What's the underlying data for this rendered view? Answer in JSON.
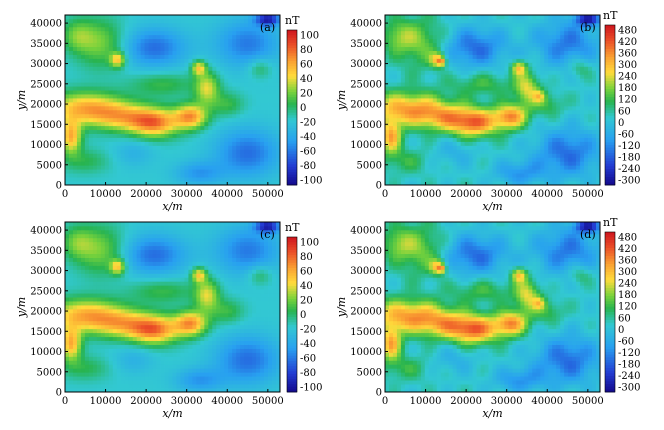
{
  "figure": {
    "panels": [
      {
        "label": "(a)",
        "unit": "nT",
        "colorbar_ticks": [
          "100",
          "80",
          "60",
          "40",
          "20",
          "0",
          "-20",
          "-40",
          "-60",
          "-80",
          "-100"
        ],
        "xlabel": "x/m",
        "ylabel": "y/m"
      },
      {
        "label": "(b)",
        "unit": "nT",
        "colorbar_ticks": [
          "480",
          "420",
          "360",
          "300",
          "240",
          "180",
          "120",
          "60",
          "0",
          "-60",
          "-120",
          "-180",
          "-240",
          "-300"
        ],
        "xlabel": "x/m",
        "ylabel": "y/m"
      },
      {
        "label": "(c)",
        "unit": "nT",
        "colorbar_ticks": [
          "100",
          "80",
          "60",
          "40",
          "20",
          "0",
          "-20",
          "-40",
          "-60",
          "-80",
          "-100"
        ],
        "xlabel": "x/m",
        "ylabel": "y/m"
      },
      {
        "label": "(d)",
        "unit": "nT",
        "colorbar_ticks": [
          "480",
          "420",
          "360",
          "300",
          "240",
          "180",
          "120",
          "60",
          "0",
          "-60",
          "-120",
          "-180",
          "-240",
          "-300"
        ],
        "xlabel": "x/m",
        "ylabel": "y/m"
      }
    ],
    "x_ticks": [
      "0",
      "10000",
      "20000",
      "30000",
      "40000",
      "50000"
    ],
    "y_ticks": [
      "0",
      "5000",
      "10000",
      "15000",
      "20000",
      "25000",
      "30000",
      "35000",
      "40000"
    ]
  },
  "chart_data": [
    {
      "type": "heatmap",
      "title": "(a)",
      "xlabel": "x/m",
      "ylabel": "y/m",
      "xlim": [
        0,
        53000
      ],
      "ylim": [
        0,
        42000
      ],
      "colorbar_label": "nT",
      "colorbar_range": [
        -100,
        100
      ],
      "value_peak": 100,
      "value_min": -100
    },
    {
      "type": "heatmap",
      "title": "(b)",
      "xlabel": "x/m",
      "ylabel": "y/m",
      "xlim": [
        0,
        53000
      ],
      "ylim": [
        0,
        42000
      ],
      "colorbar_label": "nT",
      "colorbar_range": [
        -300,
        480
      ],
      "value_peak": 480,
      "value_min": -300
    },
    {
      "type": "heatmap",
      "title": "(c)",
      "xlabel": "x/m",
      "ylabel": "y/m",
      "xlim": [
        0,
        53000
      ],
      "ylim": [
        0,
        42000
      ],
      "colorbar_label": "nT",
      "colorbar_range": [
        -100,
        100
      ],
      "value_peak": 100,
      "value_min": -100
    },
    {
      "type": "heatmap",
      "title": "(d)",
      "xlabel": "x/m",
      "ylabel": "y/m",
      "xlim": [
        0,
        53000
      ],
      "ylim": [
        0,
        42000
      ],
      "colorbar_label": "nT",
      "colorbar_range": [
        -300,
        480
      ],
      "value_peak": 480,
      "value_min": -300
    }
  ]
}
